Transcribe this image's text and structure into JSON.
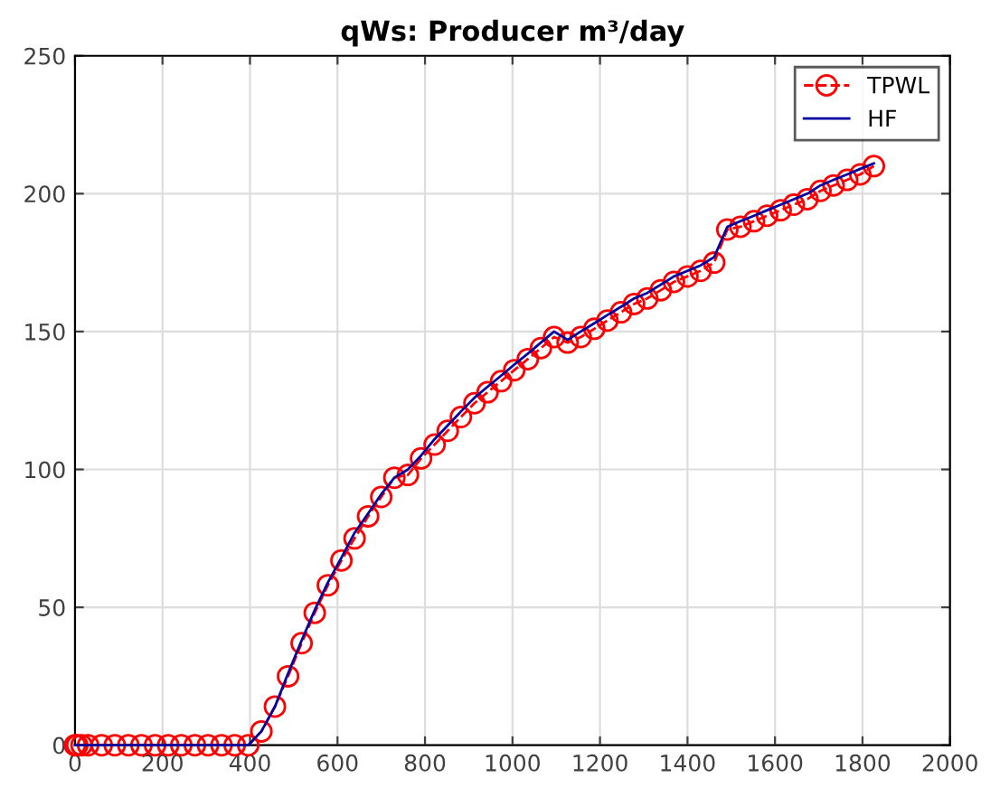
{
  "chart_data": {
    "type": "line",
    "title": "qWs: Producer m³/day",
    "xlim": [
      0,
      2000
    ],
    "xticks": [
      0,
      200,
      400,
      600,
      800,
      1000,
      1200,
      1400,
      1600,
      1800,
      2000
    ],
    "ylim": [
      0,
      250
    ],
    "yticks": [
      0,
      50,
      100,
      150,
      200,
      250
    ],
    "grid": true,
    "legend": "top right",
    "series": [
      {
        "name": "TPWL",
        "color": "#ff0000",
        "marker": "circle",
        "line_style": "dashed",
        "x": [
          0,
          5,
          15,
          30,
          61,
          91,
          122,
          152,
          183,
          213,
          243,
          274,
          304,
          335,
          365,
          396,
          426,
          457,
          487,
          518,
          548,
          578,
          609,
          639,
          670,
          700,
          730,
          761,
          791,
          822,
          852,
          882,
          913,
          943,
          974,
          1004,
          1035,
          1065,
          1095,
          1126,
          1156,
          1187,
          1217,
          1248,
          1278,
          1308,
          1339,
          1369,
          1400,
          1430,
          1461,
          1491,
          1521,
          1552,
          1582,
          1613,
          1643,
          1674,
          1704,
          1734,
          1765,
          1795,
          1826
        ],
        "values": [
          0,
          0,
          0,
          0,
          0,
          0,
          0,
          0,
          0,
          0,
          0,
          0,
          0,
          0,
          0,
          0,
          5,
          14,
          25,
          37,
          48,
          58,
          67,
          75,
          83,
          90,
          97,
          98,
          104,
          109,
          114,
          119,
          124,
          128,
          132,
          136,
          140,
          144,
          148,
          146,
          148,
          151,
          154,
          157,
          160,
          162,
          165,
          168,
          170,
          172,
          175,
          187,
          188,
          190,
          192,
          194,
          196,
          198,
          201,
          203,
          205,
          207,
          210
        ]
      },
      {
        "name": "HF",
        "color": "#0000a0",
        "marker": "none",
        "line_style": "solid",
        "x": [
          0,
          5,
          15,
          30,
          61,
          91,
          122,
          152,
          183,
          213,
          243,
          274,
          304,
          335,
          365,
          396,
          426,
          457,
          487,
          518,
          548,
          578,
          609,
          639,
          670,
          700,
          730,
          761,
          791,
          822,
          852,
          882,
          913,
          943,
          974,
          1004,
          1035,
          1065,
          1095,
          1126,
          1156,
          1187,
          1217,
          1248,
          1278,
          1308,
          1339,
          1369,
          1400,
          1430,
          1461,
          1491,
          1521,
          1552,
          1582,
          1613,
          1643,
          1674,
          1704,
          1734,
          1765,
          1795,
          1826
        ],
        "values": [
          0,
          0,
          0,
          0,
          0,
          0,
          0,
          0,
          0,
          0,
          0,
          0,
          0,
          0,
          0,
          0,
          5,
          14,
          26,
          38,
          49,
          59,
          68,
          77,
          84,
          91,
          97,
          100,
          105,
          111,
          116,
          121,
          126,
          130,
          134,
          138,
          142,
          146,
          150,
          147,
          150,
          153,
          156,
          159,
          162,
          164,
          167,
          170,
          172,
          174,
          177,
          188,
          190,
          192,
          194,
          196,
          198,
          200,
          203,
          205,
          207,
          209,
          211
        ]
      }
    ]
  }
}
